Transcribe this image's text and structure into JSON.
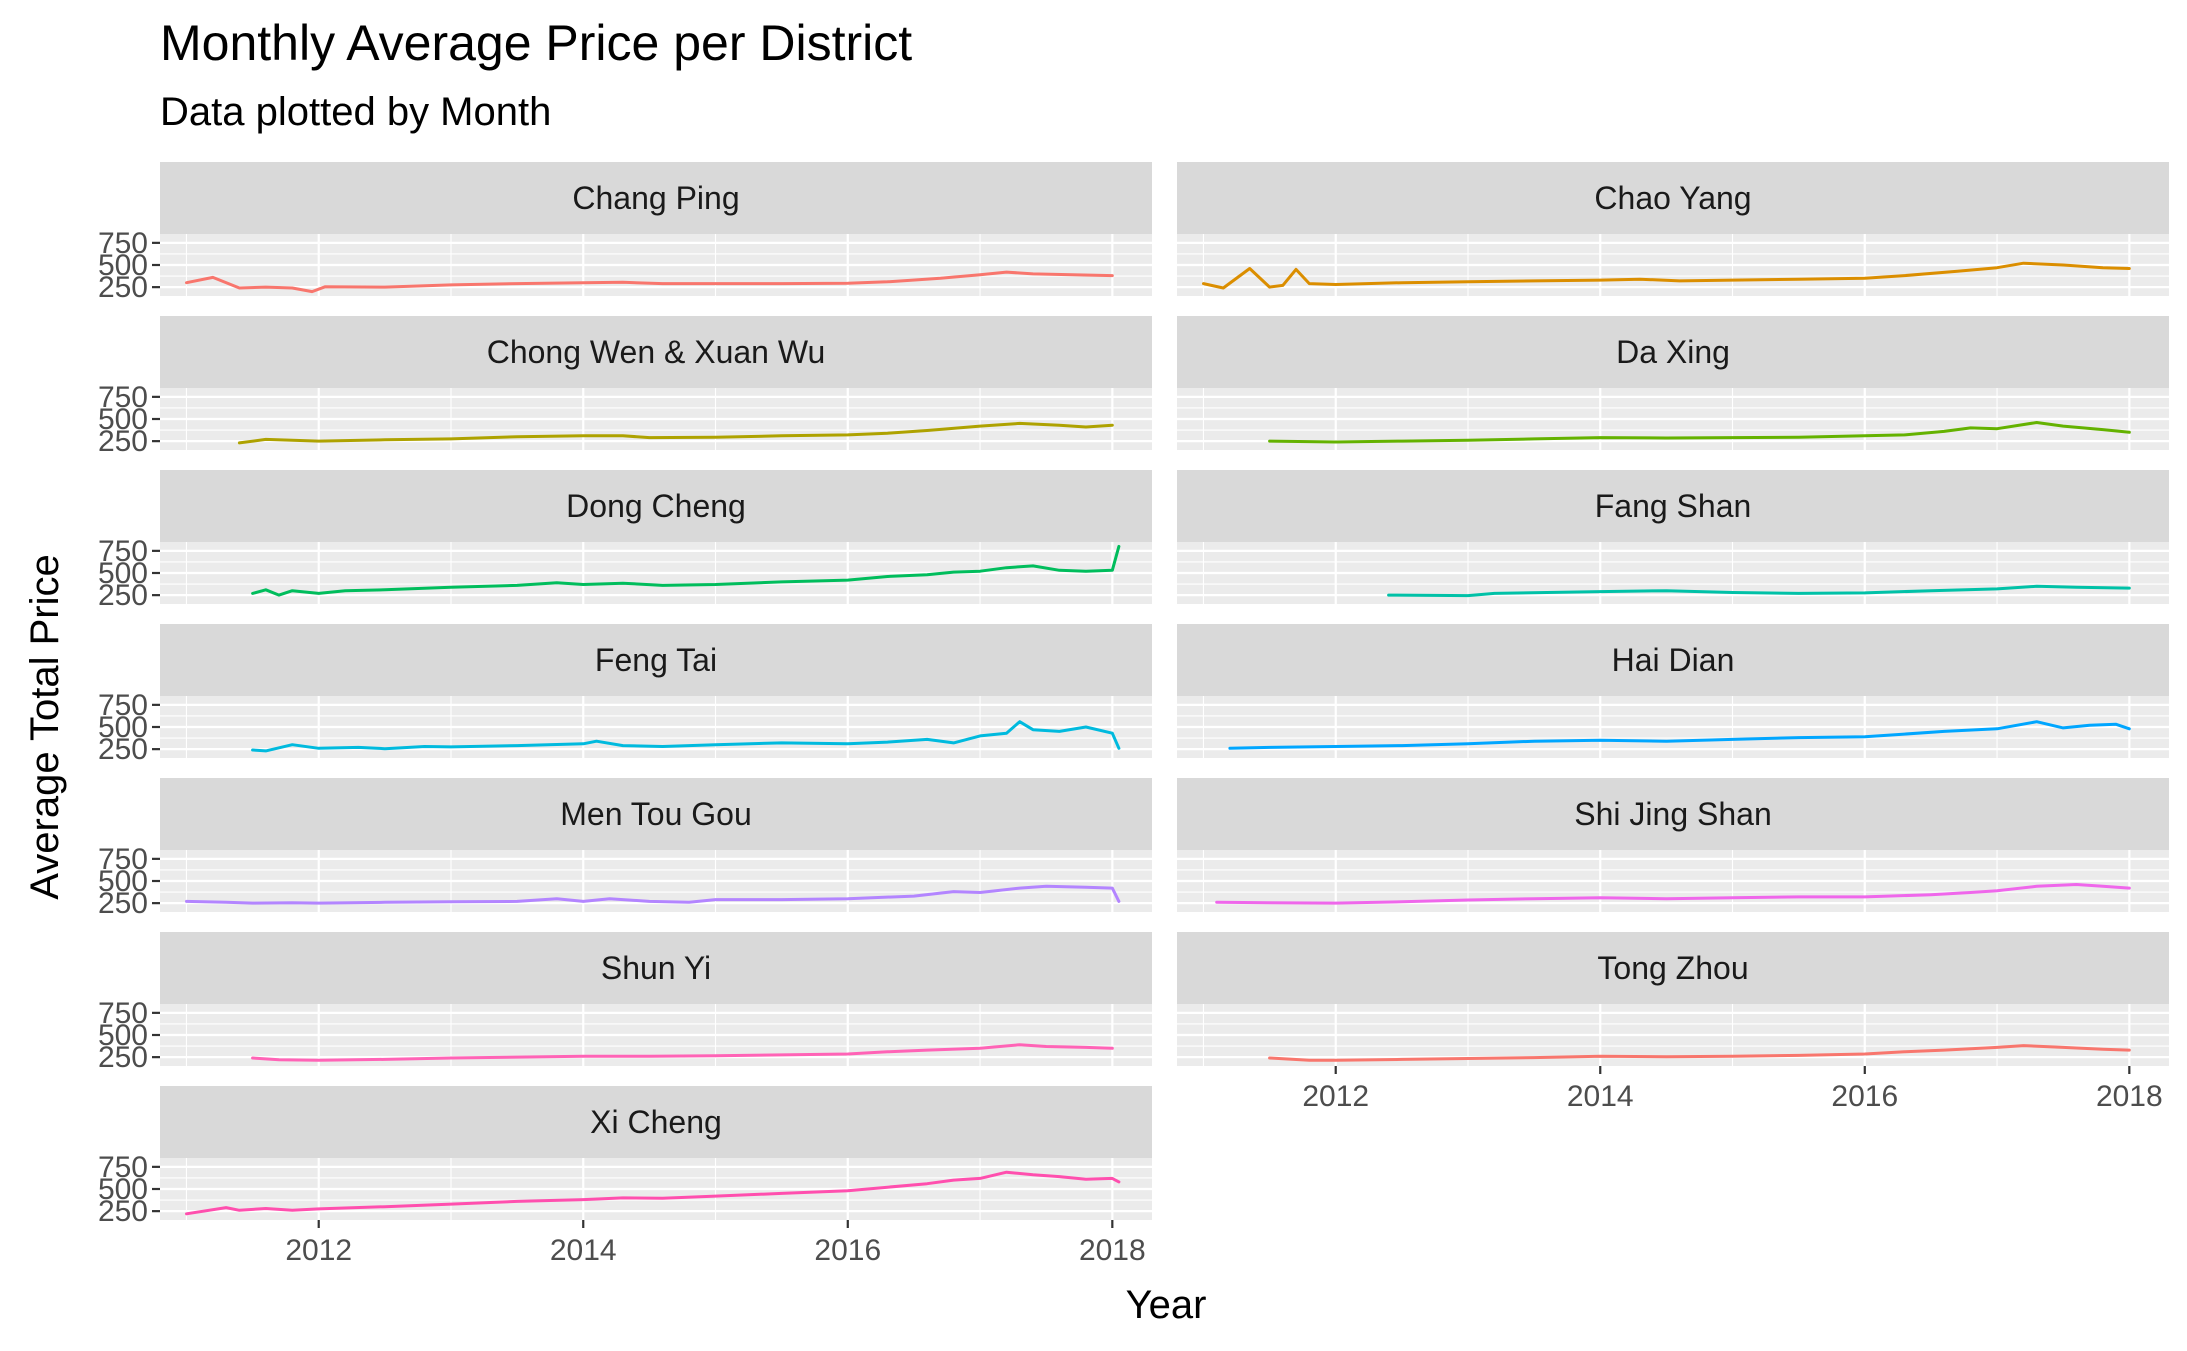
{
  "title": "Monthly Average Price per District",
  "subtitle": "Data plotted by Month",
  "chart_data": {
    "type": "line",
    "title": "Monthly Average Price per District",
    "subtitle": "Data plotted by Month",
    "xlabel": "Year",
    "ylabel": "Average Total Price",
    "xlim": [
      2010.8,
      2018.3
    ],
    "ylim": [
      150,
      850
    ],
    "x_ticks": [
      2012,
      2014,
      2016,
      2018
    ],
    "x_tick_labels": [
      "2012",
      "2014",
      "2016",
      "2018"
    ],
    "y_ticks": [
      250,
      500,
      750
    ],
    "y_tick_labels": [
      "250",
      "500",
      "750"
    ],
    "facets": "wrap, 2 columns, shared axes",
    "grid": true,
    "legend": "none",
    "series": [
      {
        "name": "Chang Ping",
        "color": "#F8766D",
        "points": [
          [
            2011.0,
            300
          ],
          [
            2011.2,
            360
          ],
          [
            2011.4,
            240
          ],
          [
            2011.6,
            250
          ],
          [
            2011.8,
            240
          ],
          [
            2011.95,
            200
          ],
          [
            2012.05,
            255
          ],
          [
            2012.5,
            250
          ],
          [
            2013.0,
            275
          ],
          [
            2013.5,
            290
          ],
          [
            2014.0,
            300
          ],
          [
            2014.3,
            305
          ],
          [
            2014.6,
            290
          ],
          [
            2015.0,
            290
          ],
          [
            2015.5,
            290
          ],
          [
            2016.0,
            295
          ],
          [
            2016.3,
            310
          ],
          [
            2016.7,
            350
          ],
          [
            2017.0,
            390
          ],
          [
            2017.2,
            420
          ],
          [
            2017.4,
            400
          ],
          [
            2017.7,
            390
          ],
          [
            2018.0,
            380
          ]
        ]
      },
      {
        "name": "Chao Yang",
        "color": "#DB8E00",
        "points": [
          [
            2011.0,
            290
          ],
          [
            2011.15,
            240
          ],
          [
            2011.35,
            460
          ],
          [
            2011.5,
            250
          ],
          [
            2011.6,
            270
          ],
          [
            2011.7,
            450
          ],
          [
            2011.8,
            290
          ],
          [
            2012.0,
            280
          ],
          [
            2012.5,
            300
          ],
          [
            2013.0,
            310
          ],
          [
            2013.5,
            320
          ],
          [
            2014.0,
            330
          ],
          [
            2014.3,
            340
          ],
          [
            2014.6,
            320
          ],
          [
            2015.0,
            330
          ],
          [
            2015.5,
            340
          ],
          [
            2016.0,
            350
          ],
          [
            2016.3,
            380
          ],
          [
            2016.7,
            430
          ],
          [
            2017.0,
            470
          ],
          [
            2017.2,
            520
          ],
          [
            2017.5,
            500
          ],
          [
            2017.8,
            470
          ],
          [
            2018.0,
            460
          ]
        ]
      },
      {
        "name": "Chong Wen & Xuan Wu",
        "color": "#AEA200",
        "points": [
          [
            2011.4,
            230
          ],
          [
            2011.6,
            270
          ],
          [
            2011.8,
            260
          ],
          [
            2012.0,
            250
          ],
          [
            2012.5,
            265
          ],
          [
            2013.0,
            275
          ],
          [
            2013.5,
            300
          ],
          [
            2014.0,
            310
          ],
          [
            2014.3,
            310
          ],
          [
            2014.5,
            290
          ],
          [
            2015.0,
            295
          ],
          [
            2015.5,
            310
          ],
          [
            2016.0,
            320
          ],
          [
            2016.3,
            340
          ],
          [
            2016.6,
            370
          ],
          [
            2017.0,
            420
          ],
          [
            2017.3,
            450
          ],
          [
            2017.6,
            430
          ],
          [
            2017.8,
            410
          ],
          [
            2018.0,
            430
          ]
        ]
      },
      {
        "name": "Da Xing",
        "color": "#64B200",
        "points": [
          [
            2011.5,
            250
          ],
          [
            2012.0,
            240
          ],
          [
            2012.5,
            250
          ],
          [
            2013.0,
            260
          ],
          [
            2013.5,
            275
          ],
          [
            2014.0,
            290
          ],
          [
            2014.5,
            285
          ],
          [
            2015.0,
            290
          ],
          [
            2015.5,
            295
          ],
          [
            2016.0,
            310
          ],
          [
            2016.3,
            320
          ],
          [
            2016.6,
            360
          ],
          [
            2016.8,
            400
          ],
          [
            2017.0,
            390
          ],
          [
            2017.3,
            460
          ],
          [
            2017.5,
            420
          ],
          [
            2017.8,
            380
          ],
          [
            2018.0,
            350
          ]
        ]
      },
      {
        "name": "Dong Cheng",
        "color": "#00BD5C",
        "points": [
          [
            2011.5,
            270
          ],
          [
            2011.6,
            310
          ],
          [
            2011.7,
            250
          ],
          [
            2011.8,
            300
          ],
          [
            2012.0,
            270
          ],
          [
            2012.2,
            300
          ],
          [
            2012.5,
            310
          ],
          [
            2013.0,
            340
          ],
          [
            2013.5,
            360
          ],
          [
            2013.8,
            390
          ],
          [
            2014.0,
            370
          ],
          [
            2014.3,
            385
          ],
          [
            2014.6,
            360
          ],
          [
            2015.0,
            370
          ],
          [
            2015.5,
            400
          ],
          [
            2016.0,
            420
          ],
          [
            2016.3,
            460
          ],
          [
            2016.6,
            480
          ],
          [
            2016.8,
            510
          ],
          [
            2017.0,
            520
          ],
          [
            2017.2,
            560
          ],
          [
            2017.4,
            580
          ],
          [
            2017.6,
            530
          ],
          [
            2017.8,
            520
          ],
          [
            2018.0,
            530
          ],
          [
            2018.05,
            800
          ]
        ]
      },
      {
        "name": "Fang Shan",
        "color": "#00C1A7",
        "points": [
          [
            2012.4,
            250
          ],
          [
            2013.0,
            245
          ],
          [
            2013.2,
            270
          ],
          [
            2014.0,
            290
          ],
          [
            2014.5,
            300
          ],
          [
            2015.0,
            280
          ],
          [
            2015.5,
            270
          ],
          [
            2016.0,
            275
          ],
          [
            2016.5,
            300
          ],
          [
            2017.0,
            320
          ],
          [
            2017.3,
            350
          ],
          [
            2017.6,
            340
          ],
          [
            2018.0,
            330
          ]
        ]
      },
      {
        "name": "Feng Tai",
        "color": "#00BADE",
        "points": [
          [
            2011.5,
            240
          ],
          [
            2011.6,
            230
          ],
          [
            2011.8,
            300
          ],
          [
            2012.0,
            260
          ],
          [
            2012.3,
            270
          ],
          [
            2012.5,
            255
          ],
          [
            2012.8,
            280
          ],
          [
            2013.0,
            275
          ],
          [
            2013.5,
            290
          ],
          [
            2014.0,
            310
          ],
          [
            2014.1,
            340
          ],
          [
            2014.3,
            290
          ],
          [
            2014.6,
            280
          ],
          [
            2015.0,
            300
          ],
          [
            2015.5,
            320
          ],
          [
            2016.0,
            310
          ],
          [
            2016.3,
            330
          ],
          [
            2016.6,
            360
          ],
          [
            2016.8,
            320
          ],
          [
            2017.0,
            400
          ],
          [
            2017.2,
            430
          ],
          [
            2017.3,
            560
          ],
          [
            2017.4,
            470
          ],
          [
            2017.6,
            450
          ],
          [
            2017.8,
            500
          ],
          [
            2018.0,
            430
          ],
          [
            2018.05,
            260
          ]
        ]
      },
      {
        "name": "Hai Dian",
        "color": "#00A6FF",
        "points": [
          [
            2011.2,
            260
          ],
          [
            2011.5,
            270
          ],
          [
            2012.0,
            280
          ],
          [
            2012.5,
            290
          ],
          [
            2013.0,
            310
          ],
          [
            2013.5,
            340
          ],
          [
            2014.0,
            350
          ],
          [
            2014.5,
            340
          ],
          [
            2015.0,
            360
          ],
          [
            2015.5,
            380
          ],
          [
            2016.0,
            390
          ],
          [
            2016.3,
            420
          ],
          [
            2016.6,
            450
          ],
          [
            2017.0,
            480
          ],
          [
            2017.3,
            560
          ],
          [
            2017.5,
            490
          ],
          [
            2017.7,
            520
          ],
          [
            2017.9,
            530
          ],
          [
            2018.0,
            480
          ]
        ]
      },
      {
        "name": "Men Tou Gou",
        "color": "#B385FF",
        "points": [
          [
            2011.0,
            270
          ],
          [
            2011.3,
            260
          ],
          [
            2011.5,
            250
          ],
          [
            2011.8,
            255
          ],
          [
            2012.0,
            250
          ],
          [
            2012.5,
            260
          ],
          [
            2013.0,
            265
          ],
          [
            2013.5,
            270
          ],
          [
            2013.8,
            300
          ],
          [
            2014.0,
            270
          ],
          [
            2014.2,
            300
          ],
          [
            2014.5,
            270
          ],
          [
            2014.8,
            260
          ],
          [
            2015.0,
            290
          ],
          [
            2015.5,
            290
          ],
          [
            2016.0,
            300
          ],
          [
            2016.5,
            330
          ],
          [
            2016.8,
            380
          ],
          [
            2017.0,
            370
          ],
          [
            2017.3,
            420
          ],
          [
            2017.5,
            440
          ],
          [
            2017.8,
            430
          ],
          [
            2018.0,
            420
          ],
          [
            2018.05,
            270
          ]
        ]
      },
      {
        "name": "Shi Jing Shan",
        "color": "#EF67EB",
        "points": [
          [
            2011.1,
            260
          ],
          [
            2011.5,
            255
          ],
          [
            2012.0,
            250
          ],
          [
            2012.5,
            265
          ],
          [
            2013.0,
            285
          ],
          [
            2013.5,
            300
          ],
          [
            2014.0,
            310
          ],
          [
            2014.5,
            300
          ],
          [
            2015.0,
            310
          ],
          [
            2015.5,
            320
          ],
          [
            2016.0,
            320
          ],
          [
            2016.5,
            345
          ],
          [
            2016.8,
            370
          ],
          [
            2017.0,
            390
          ],
          [
            2017.3,
            440
          ],
          [
            2017.6,
            460
          ],
          [
            2017.8,
            440
          ],
          [
            2018.0,
            420
          ]
        ]
      },
      {
        "name": "Shun Yi",
        "color": "#FF63B6",
        "points": [
          [
            2011.5,
            240
          ],
          [
            2011.7,
            220
          ],
          [
            2012.0,
            215
          ],
          [
            2012.5,
            225
          ],
          [
            2013.0,
            240
          ],
          [
            2013.5,
            250
          ],
          [
            2014.0,
            260
          ],
          [
            2014.5,
            260
          ],
          [
            2015.0,
            265
          ],
          [
            2015.5,
            275
          ],
          [
            2016.0,
            285
          ],
          [
            2016.3,
            310
          ],
          [
            2016.6,
            330
          ],
          [
            2017.0,
            350
          ],
          [
            2017.3,
            390
          ],
          [
            2017.5,
            370
          ],
          [
            2017.8,
            360
          ],
          [
            2018.0,
            350
          ]
        ]
      },
      {
        "name": "Tong Zhou",
        "color": "#F8766D",
        "points": [
          [
            2011.5,
            240
          ],
          [
            2011.8,
            215
          ],
          [
            2012.0,
            215
          ],
          [
            2012.5,
            225
          ],
          [
            2013.0,
            235
          ],
          [
            2013.5,
            245
          ],
          [
            2014.0,
            260
          ],
          [
            2014.5,
            255
          ],
          [
            2015.0,
            260
          ],
          [
            2015.5,
            270
          ],
          [
            2016.0,
            285
          ],
          [
            2016.3,
            310
          ],
          [
            2016.6,
            330
          ],
          [
            2017.0,
            360
          ],
          [
            2017.2,
            380
          ],
          [
            2017.5,
            360
          ],
          [
            2017.8,
            340
          ],
          [
            2018.0,
            330
          ]
        ]
      },
      {
        "name": "Xi Cheng",
        "color": "#FF4FAE",
        "points": [
          [
            2011.0,
            220
          ],
          [
            2011.3,
            290
          ],
          [
            2011.4,
            260
          ],
          [
            2011.6,
            280
          ],
          [
            2011.8,
            260
          ],
          [
            2012.0,
            275
          ],
          [
            2012.5,
            300
          ],
          [
            2013.0,
            330
          ],
          [
            2013.5,
            360
          ],
          [
            2014.0,
            380
          ],
          [
            2014.3,
            400
          ],
          [
            2014.6,
            395
          ],
          [
            2015.0,
            420
          ],
          [
            2015.5,
            450
          ],
          [
            2016.0,
            480
          ],
          [
            2016.3,
            520
          ],
          [
            2016.6,
            560
          ],
          [
            2016.8,
            600
          ],
          [
            2017.0,
            620
          ],
          [
            2017.2,
            690
          ],
          [
            2017.4,
            660
          ],
          [
            2017.6,
            640
          ],
          [
            2017.8,
            610
          ],
          [
            2018.0,
            620
          ],
          [
            2018.05,
            580
          ]
        ]
      }
    ]
  }
}
